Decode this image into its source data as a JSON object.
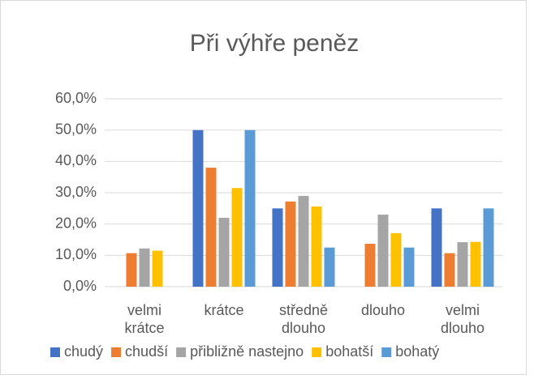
{
  "chart_data": {
    "type": "bar",
    "title": "Při výhře peněz",
    "categories": [
      "velmi krátce",
      "krátce",
      "středně dlouho",
      "dlouho",
      "velmi dlouho"
    ],
    "series": [
      {
        "name": "chudý",
        "color": "#4472c4",
        "values": [
          0,
          50,
          25,
          0,
          25
        ]
      },
      {
        "name": "chudší",
        "color": "#ed7d31",
        "values": [
          10.7,
          38,
          27.2,
          13.7,
          10.7
        ]
      },
      {
        "name": "přibližně nastejno",
        "color": "#a5a5a5",
        "values": [
          12.2,
          22,
          29,
          23,
          14.2
        ]
      },
      {
        "name": "bohatší",
        "color": "#ffc000",
        "values": [
          11.5,
          31.5,
          25.6,
          17.1,
          14.3
        ]
      },
      {
        "name": "bohatý",
        "color": "#5b9bd5",
        "values": [
          0,
          50,
          12.5,
          12.5,
          25
        ]
      }
    ],
    "ylim": [
      0,
      60
    ],
    "yticks": [
      {
        "value": 0,
        "label": "0,0%"
      },
      {
        "value": 10,
        "label": "10,0%"
      },
      {
        "value": 20,
        "label": "20,0%"
      },
      {
        "value": 30,
        "label": "30,0%"
      },
      {
        "value": 40,
        "label": "40,0%"
      },
      {
        "value": 50,
        "label": "50,0%"
      },
      {
        "value": 60,
        "label": "60,0%"
      }
    ],
    "grid": true,
    "legend": "bottom"
  }
}
